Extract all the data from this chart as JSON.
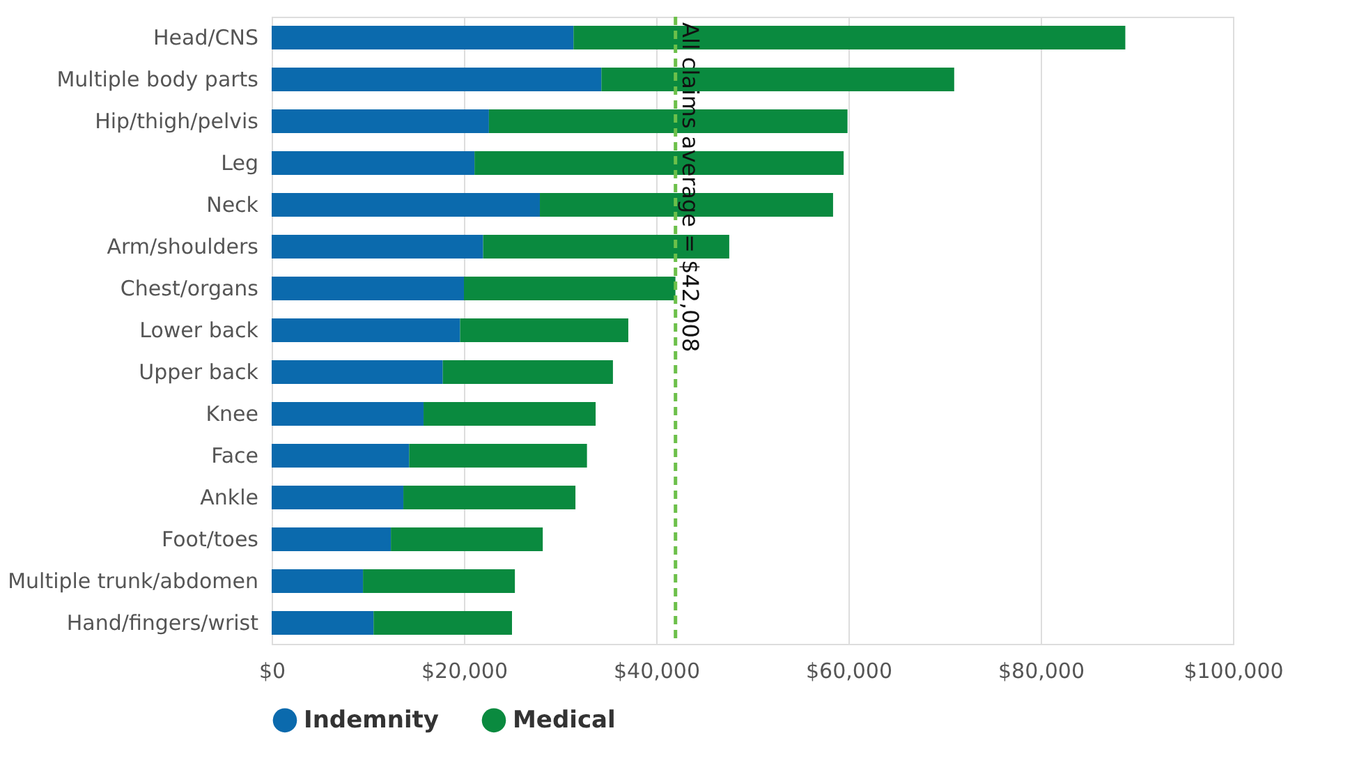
{
  "chart_data": {
    "type": "bar",
    "orientation": "horizontal",
    "stacked": true,
    "categories": [
      "Head/CNS",
      "Multiple body parts",
      "Hip/thigh/pelvis",
      "Leg",
      "Neck",
      "Arm/shoulders",
      "Chest/organs",
      "Lower back",
      "Upper back",
      "Knee",
      "Face",
      "Ankle",
      "Foot/toes",
      "Multiple trunk/abdomen",
      "Hand/fingers/wrist"
    ],
    "series": [
      {
        "name": "Indemnity",
        "color": "#0b6aad",
        "values": [
          31400,
          34300,
          22600,
          21100,
          27900,
          22000,
          20000,
          19600,
          17800,
          15800,
          14300,
          13700,
          12400,
          9500,
          10600
        ]
      },
      {
        "name": "Medical",
        "color": "#0a8a3f",
        "values": [
          57400,
          36700,
          37300,
          38400,
          30500,
          25600,
          22000,
          17500,
          17700,
          17900,
          18500,
          17900,
          15800,
          15800,
          14400
        ]
      }
    ],
    "xlim": [
      0,
      100000
    ],
    "xticks": [
      {
        "value": 0,
        "label": "$0"
      },
      {
        "value": 20000,
        "label": "$20,000"
      },
      {
        "value": 40000,
        "label": "$40,000"
      },
      {
        "value": 60000,
        "label": "$60,000"
      },
      {
        "value": 80000,
        "label": "$80,000"
      },
      {
        "value": 100000,
        "label": "$100,000"
      }
    ],
    "grid": "x",
    "legend": "bottom",
    "ref_lines": [
      {
        "axis": "x",
        "value": 42008,
        "label": "All claims average = $42,008",
        "color": "#6cc04a",
        "line_style": "dashed"
      }
    ]
  }
}
